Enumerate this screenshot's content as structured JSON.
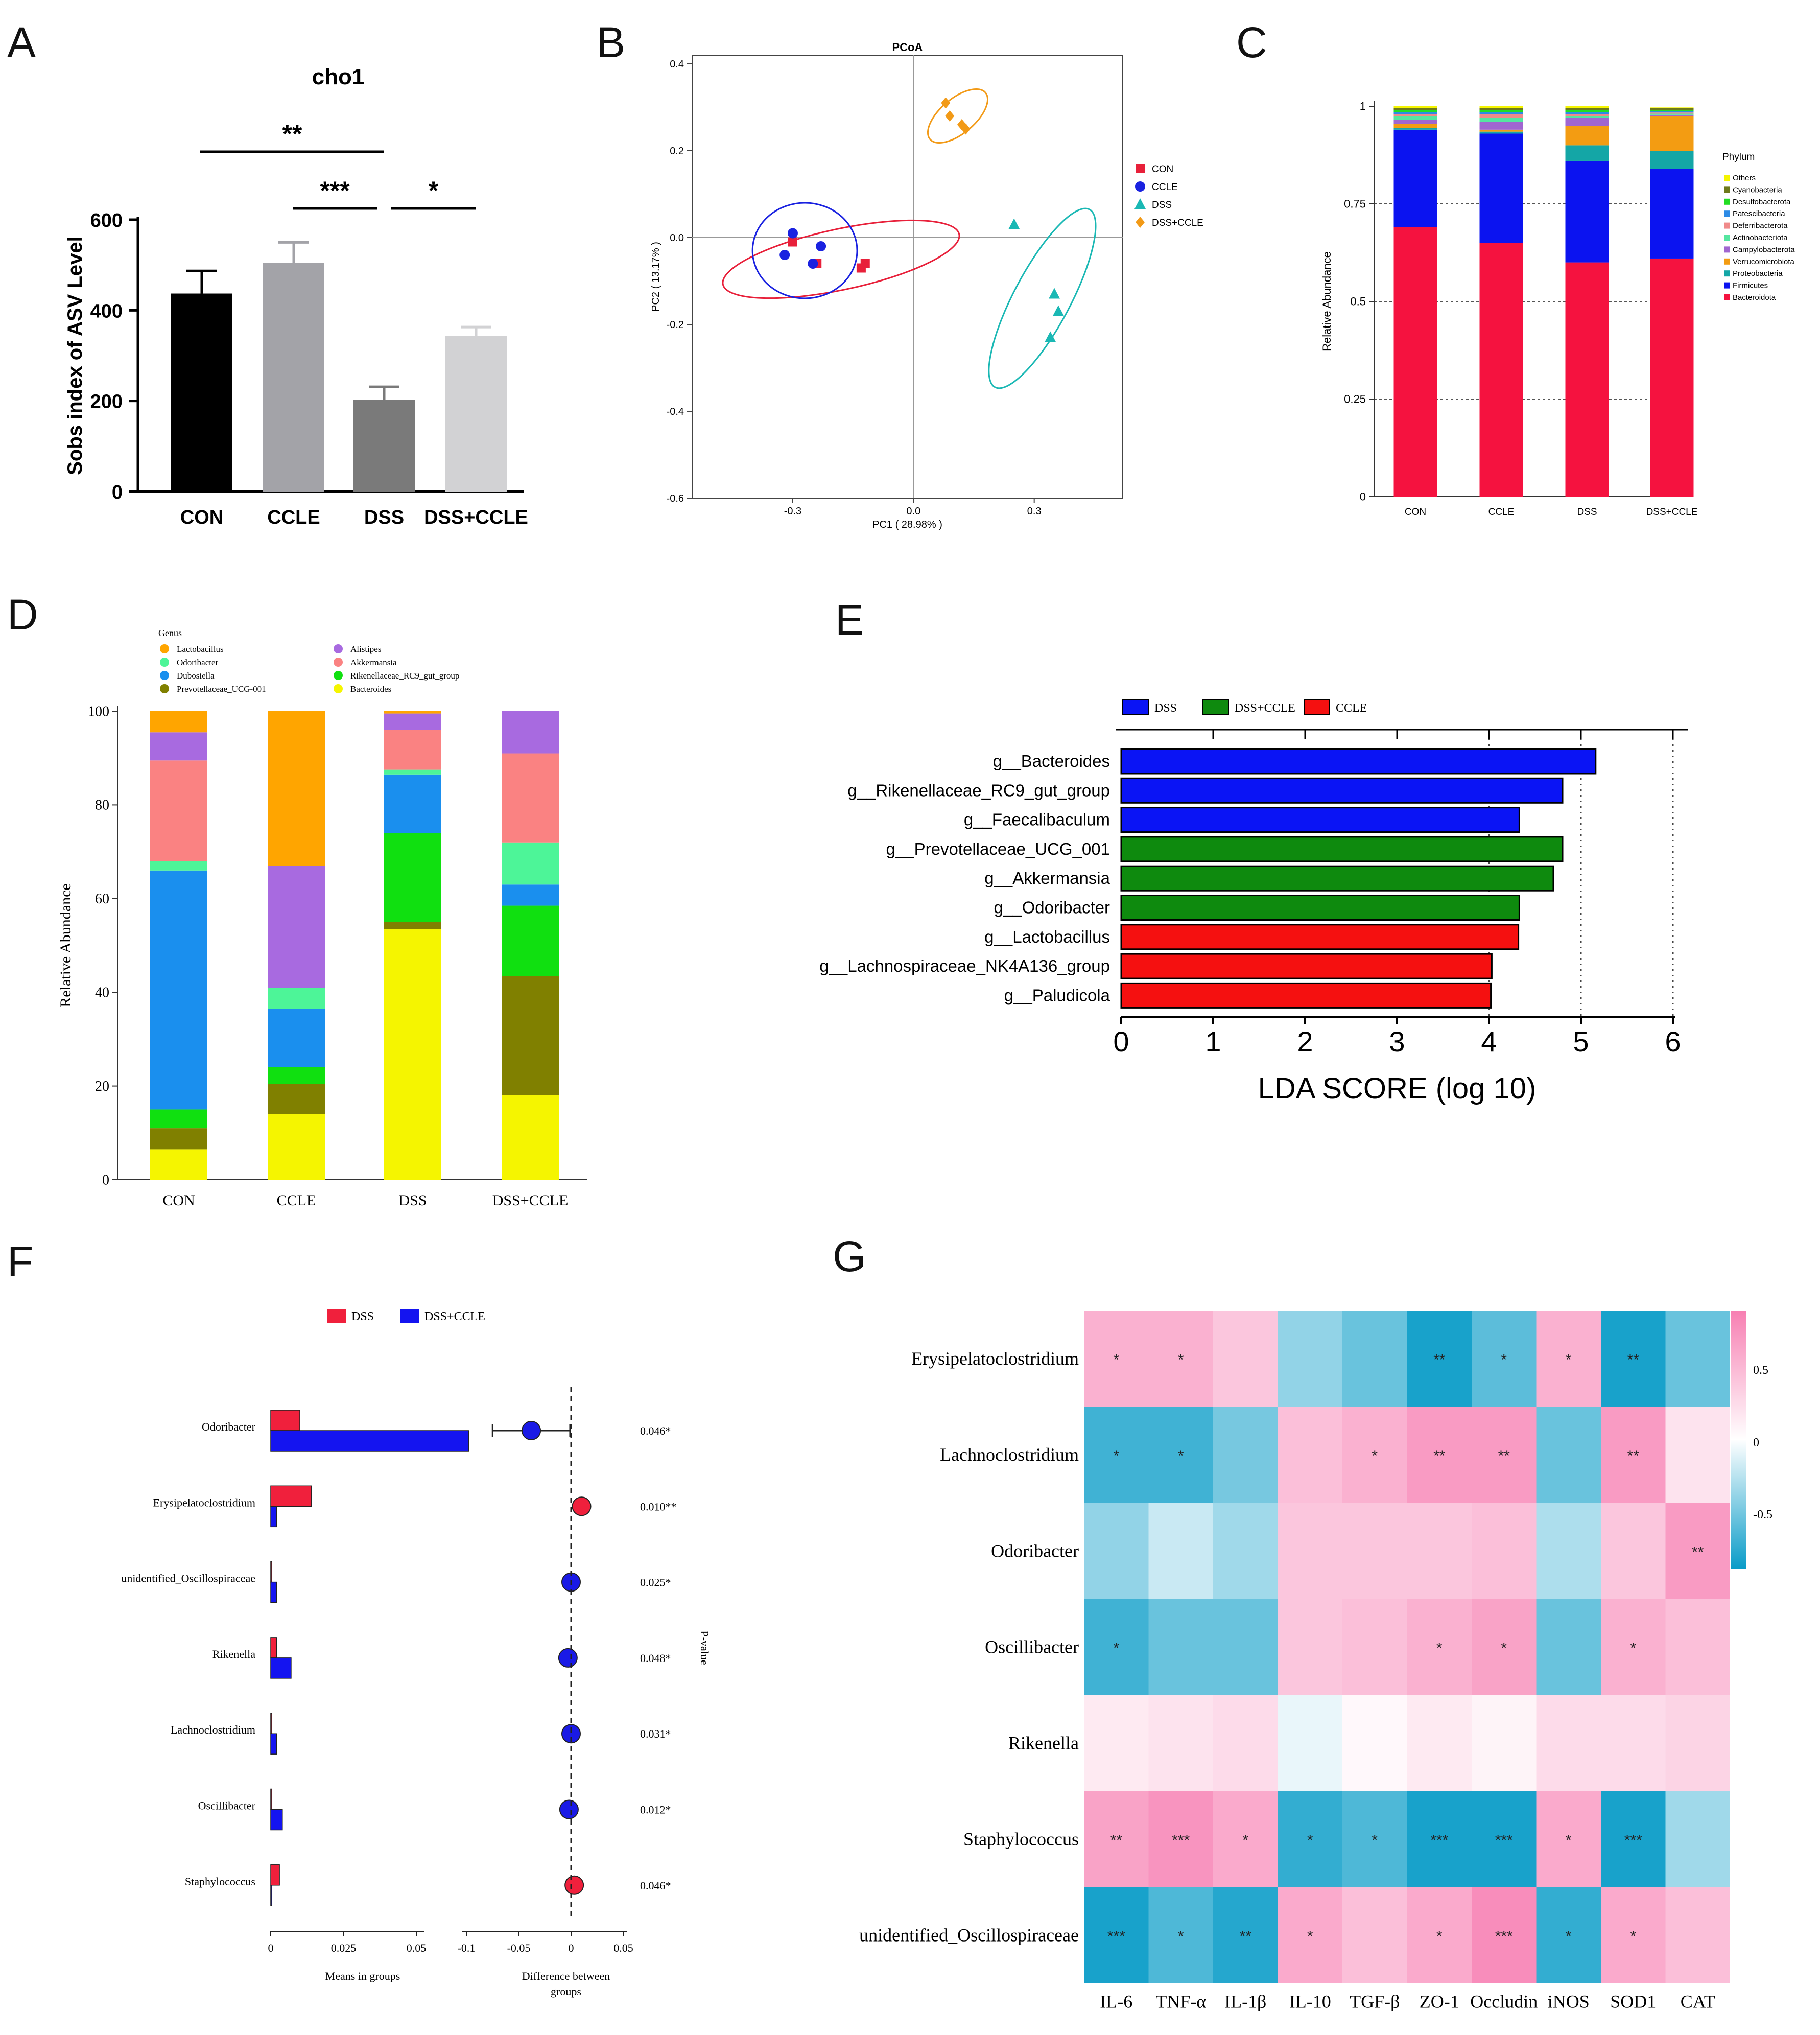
{
  "panel_letters": [
    "A",
    "B",
    "C",
    "D",
    "E",
    "F",
    "G"
  ],
  "chart_data": [
    {
      "panel": "A",
      "type": "bar",
      "title": "cho1",
      "ylabel": "Sobs index of ASV Level",
      "xlabel": "",
      "ylim": [
        0,
        600
      ],
      "yticks": [
        "0",
        "200",
        "400",
        "600"
      ],
      "categories": [
        "CON",
        "CCLE",
        "DSS",
        "DSS+CCLE"
      ],
      "values": [
        437,
        505,
        203,
        343
      ],
      "errors": [
        50,
        45,
        28,
        20
      ],
      "colors": [
        "#000000",
        "#a3a3a8",
        "#7a7a7a",
        "#d2d2d4"
      ],
      "significance": [
        {
          "from": "CON",
          "to": "DSS",
          "label": "**"
        },
        {
          "from": "CCLE",
          "to": "DSS",
          "label": "***"
        },
        {
          "from": "DSS",
          "to": "DSS+CCLE",
          "label": "*"
        }
      ]
    },
    {
      "panel": "B",
      "type": "scatter",
      "title": "PCoA",
      "xlabel": "PC1 ( 28.98% )",
      "ylabel": "PC2 ( 13.17% )",
      "xlim": [
        -0.55,
        0.52
      ],
      "ylim": [
        -0.6,
        0.42
      ],
      "xticks": [
        -0.3,
        0.0,
        0.3
      ],
      "xtick_labels": [
        "-0.3",
        "0.0",
        "0.3"
      ],
      "yticks": [
        0.4,
        0.2,
        0.0,
        -0.2,
        -0.4,
        -0.6
      ],
      "ytick_labels": [
        "0.4",
        "0.2",
        "0.0",
        "-0.2",
        "-0.4",
        "-0.6"
      ],
      "series": [
        {
          "name": "CON",
          "color": "#e8203a",
          "marker": "square",
          "x": [
            -0.3,
            -0.24,
            -0.13,
            -0.12
          ],
          "y": [
            -0.01,
            -0.06,
            -0.07,
            -0.06
          ]
        },
        {
          "name": "CCLE",
          "color": "#1a22e0",
          "marker": "circle",
          "x": [
            -0.32,
            -0.3,
            -0.25,
            -0.23
          ],
          "y": [
            -0.04,
            0.01,
            -0.06,
            -0.02
          ]
        },
        {
          "name": "DSS",
          "color": "#1ab8b4",
          "marker": "triangle",
          "x": [
            0.25,
            0.35,
            0.36,
            0.34
          ],
          "y": [
            0.03,
            -0.13,
            -0.17,
            -0.23
          ]
        },
        {
          "name": "DSS+CCLE",
          "color": "#f29a17",
          "marker": "diamond",
          "x": [
            0.08,
            0.09,
            0.12,
            0.13
          ],
          "y": [
            0.31,
            0.28,
            0.26,
            0.25
          ]
        }
      ],
      "ellipses": [
        {
          "group": "CON",
          "cx": -0.18,
          "cy": -0.05,
          "rx": 0.3,
          "ry": 0.07,
          "angle": -12
        },
        {
          "group": "CCLE",
          "cx": -0.27,
          "cy": -0.03,
          "rx": 0.13,
          "ry": 0.11,
          "angle": 0
        },
        {
          "group": "DSS",
          "cx": 0.32,
          "cy": -0.14,
          "rx": 0.25,
          "ry": 0.065,
          "angle": -62
        },
        {
          "group": "DSS+CCLE",
          "cx": 0.11,
          "cy": 0.28,
          "rx": 0.09,
          "ry": 0.04,
          "angle": -40
        }
      ]
    },
    {
      "panel": "C",
      "type": "bar",
      "stacked": true,
      "ylabel": "Relative Abundance",
      "ylim": [
        0,
        1
      ],
      "ytick_labels": [
        "0",
        "0.25",
        "0.5",
        "0.75",
        "1"
      ],
      "legend_title": "Phylum",
      "categories": [
        "CON",
        "CCLE",
        "DSS",
        "DSS+CCLE"
      ],
      "series": [
        {
          "name": "Bacteroidota",
          "color": "#f5123f",
          "values": [
            0.69,
            0.65,
            0.6,
            0.61
          ]
        },
        {
          "name": "Firmicutes",
          "color": "#0b13f0",
          "values": [
            0.25,
            0.28,
            0.26,
            0.23
          ]
        },
        {
          "name": "Proteobacteria",
          "color": "#14a6a6",
          "values": [
            0.005,
            0.005,
            0.04,
            0.045
          ]
        },
        {
          "name": "Verrucomicrobiota",
          "color": "#f39c12",
          "values": [
            0.01,
            0.005,
            0.05,
            0.09
          ]
        },
        {
          "name": "Campylobacterota",
          "color": "#a066d0",
          "values": [
            0.01,
            0.02,
            0.02,
            0.003
          ]
        },
        {
          "name": "Actinobacteriota",
          "color": "#55e6a0",
          "values": [
            0.01,
            0.01,
            0.005,
            0.003
          ]
        },
        {
          "name": "Deferribacterota",
          "color": "#f08a8a",
          "values": [
            0.005,
            0.01,
            0.005,
            0.003
          ]
        },
        {
          "name": "Patescibacteria",
          "color": "#2d8be6",
          "values": [
            0.005,
            0.005,
            0.005,
            0.003
          ]
        },
        {
          "name": "Desulfobacterota",
          "color": "#22dd22",
          "values": [
            0.005,
            0.005,
            0.005,
            0.003
          ]
        },
        {
          "name": "Cyanobacteria",
          "color": "#6e7a1a",
          "values": [
            0.005,
            0.005,
            0.005,
            0.005
          ]
        },
        {
          "name": "Others",
          "color": "#f5f500",
          "values": [
            0.005,
            0.005,
            0.005,
            0.002
          ]
        }
      ]
    },
    {
      "panel": "D",
      "type": "bar",
      "stacked": true,
      "ylabel": "Relative  Abundance",
      "ylim": [
        0,
        100
      ],
      "ytick_labels": [
        "0",
        "20",
        "40",
        "60",
        "80",
        "100"
      ],
      "legend_title": "Genus",
      "categories": [
        "CON",
        "CCLE",
        "DSS",
        "DSS+CCLE"
      ],
      "series": [
        {
          "name": "Bacteroides",
          "color": "#f5f500",
          "values": [
            6.5,
            14,
            53.5,
            18
          ]
        },
        {
          "name": "Prevotellaceae_UCG-001",
          "color": "#808000",
          "values": [
            4.5,
            6.5,
            1.5,
            25.5
          ]
        },
        {
          "name": "Rikenellaceae_RC9_gut_group",
          "color": "#10e010",
          "values": [
            4,
            3.5,
            19,
            15
          ]
        },
        {
          "name": "Dubosiella",
          "color": "#1a8fee",
          "values": [
            51,
            12.5,
            12.5,
            4.5
          ]
        },
        {
          "name": "Odoribacter",
          "color": "#4df598",
          "values": [
            2,
            4.5,
            1,
            9
          ]
        },
        {
          "name": "Akkermansia",
          "color": "#fa8282",
          "values": [
            21.5,
            0,
            8.5,
            19
          ]
        },
        {
          "name": "Alistipes",
          "color": "#a86ae0",
          "values": [
            6,
            26,
            3.5,
            9
          ]
        },
        {
          "name": "Lactobacillus",
          "color": "#ffa500",
          "values": [
            4.5,
            33,
            0.5,
            0
          ]
        }
      ]
    },
    {
      "panel": "E",
      "type": "bar",
      "orientation": "horizontal",
      "xlabel": "LDA SCORE (log 10)",
      "xlim": [
        0,
        6
      ],
      "xtick_labels": [
        "0",
        "1",
        "2",
        "3",
        "4",
        "5",
        "6"
      ],
      "legend": [
        {
          "name": "DSS",
          "color": "#0a14f5"
        },
        {
          "name": "DSS+CCLE",
          "color": "#0e8a0e"
        },
        {
          "name": "CCLE",
          "color": "#f51010"
        }
      ],
      "categories": [
        "g__Bacteroides",
        "g__Rikenellaceae_RC9_gut_group",
        "g__Faecalibaculum",
        "g__Prevotellaceae_UCG_001",
        "g__Akkermansia",
        "g__Odoribacter",
        "g__Lactobacillus",
        "g__Lachnospiraceae_NK4A136_group",
        "g__Paludicola"
      ],
      "values": [
        5.16,
        4.8,
        4.33,
        4.8,
        4.7,
        4.33,
        4.32,
        4.03,
        4.02
      ],
      "groups": [
        "DSS",
        "DSS",
        "DSS",
        "DSS+CCLE",
        "DSS+CCLE",
        "DSS+CCLE",
        "CCLE",
        "CCLE",
        "CCLE"
      ]
    },
    {
      "panel": "F",
      "type": "bar",
      "orientation": "horizontal",
      "legend": [
        {
          "name": "DSS",
          "color": "#f0203c"
        },
        {
          "name": "DSS+CCLE",
          "color": "#1414f0"
        }
      ],
      "categories": [
        "Odoribacter",
        "Erysipelatoclostridium",
        "unidentified_Oscillospiraceae",
        "Rikenella",
        "Lachnoclostridium",
        "Oscillibacter",
        "Staphylococcus"
      ],
      "series": [
        {
          "name": "DSS",
          "values": [
            0.01,
            0.014,
            0.0,
            0.002,
            0.0,
            0.0,
            0.003
          ]
        },
        {
          "name": "DSS+CCLE",
          "values": [
            0.068,
            0.002,
            0.002,
            0.007,
            0.002,
            0.004,
            0.0
          ]
        }
      ],
      "means_xlabel": "Means in groups",
      "means_xticks": [
        "0",
        "0.025",
        "0.05"
      ],
      "difference_xlabel": [
        "Difference between",
        "groups"
      ],
      "difference_xticks": [
        "-0.1",
        "-0.05",
        "0",
        "0.05"
      ],
      "difference": [
        -0.038,
        0.01,
        0.0,
        -0.003,
        0.0,
        -0.002,
        0.003
      ],
      "difference_error": [
        0.037,
        0,
        0,
        0,
        0,
        0,
        0
      ],
      "difference_colors": [
        "#1a1ae6",
        "#f0203c",
        "#1a1ae6",
        "#1a1ae6",
        "#1a1ae6",
        "#1a1ae6",
        "#f0203c"
      ],
      "pvalue_label": "P-value",
      "pvalues": [
        "0.046*",
        "0.010**",
        "0.025*",
        "0.048*",
        "0.031*",
        "0.012*",
        "0.046*"
      ]
    },
    {
      "panel": "G",
      "type": "heatmap",
      "rows": [
        "Erysipelatoclostridium",
        "Lachnoclostridium",
        "Odoribacter",
        "Oscillibacter",
        "Rikenella",
        "Staphylococcus",
        "unidentified_Oscillospiraceae"
      ],
      "columns": [
        "IL-6",
        "TNF-α",
        "IL-1β",
        "IL-10",
        "TGF-β",
        "ZO-1",
        "Occludin",
        "iNOS",
        "SOD1",
        "CAT"
      ],
      "values": [
        [
          0.55,
          0.55,
          0.4,
          -0.4,
          -0.55,
          -0.85,
          -0.6,
          0.55,
          -0.85,
          -0.55
        ],
        [
          -0.7,
          -0.7,
          -0.5,
          0.45,
          0.55,
          0.7,
          0.7,
          -0.55,
          0.7,
          0.2
        ],
        [
          -0.4,
          -0.2,
          -0.35,
          0.4,
          0.4,
          0.4,
          0.45,
          -0.3,
          0.4,
          0.7
        ],
        [
          -0.7,
          -0.55,
          -0.55,
          0.4,
          0.45,
          0.55,
          0.65,
          -0.55,
          0.55,
          0.45
        ],
        [
          0.15,
          0.2,
          0.25,
          -0.08,
          0.05,
          0.15,
          0.08,
          0.25,
          0.25,
          0.3
        ],
        [
          0.65,
          0.75,
          0.6,
          -0.75,
          -0.65,
          -0.85,
          -0.85,
          0.6,
          -0.85,
          -0.35
        ],
        [
          -0.85,
          -0.65,
          -0.8,
          0.6,
          0.45,
          0.6,
          0.8,
          -0.75,
          0.6,
          0.45
        ]
      ],
      "stars": [
        [
          "*",
          "*",
          "",
          "",
          "",
          "**",
          "*",
          "*",
          "**",
          ""
        ],
        [
          "*",
          "*",
          "",
          "",
          "*",
          "**",
          "**",
          "",
          "**",
          ""
        ],
        [
          "",
          "",
          "",
          "",
          "",
          "",
          "",
          "",
          "",
          "**"
        ],
        [
          "*",
          "",
          "",
          "",
          "",
          "*",
          "*",
          "",
          "*",
          ""
        ],
        [
          "",
          "",
          "",
          "",
          "",
          "",
          "",
          "",
          "",
          ""
        ],
        [
          "**",
          "***",
          "*",
          "*",
          "*",
          "***",
          "***",
          "*",
          "***",
          ""
        ],
        [
          "***",
          "*",
          "**",
          "*",
          "",
          "*",
          "***",
          "*",
          "*",
          ""
        ]
      ],
      "colorbar_ticks": [
        "0.5",
        "0",
        "-0.5"
      ],
      "colorscale": {
        "negative": "#0a9cc8",
        "zero": "#ffffff",
        "positive": "#f77fb2"
      }
    }
  ]
}
